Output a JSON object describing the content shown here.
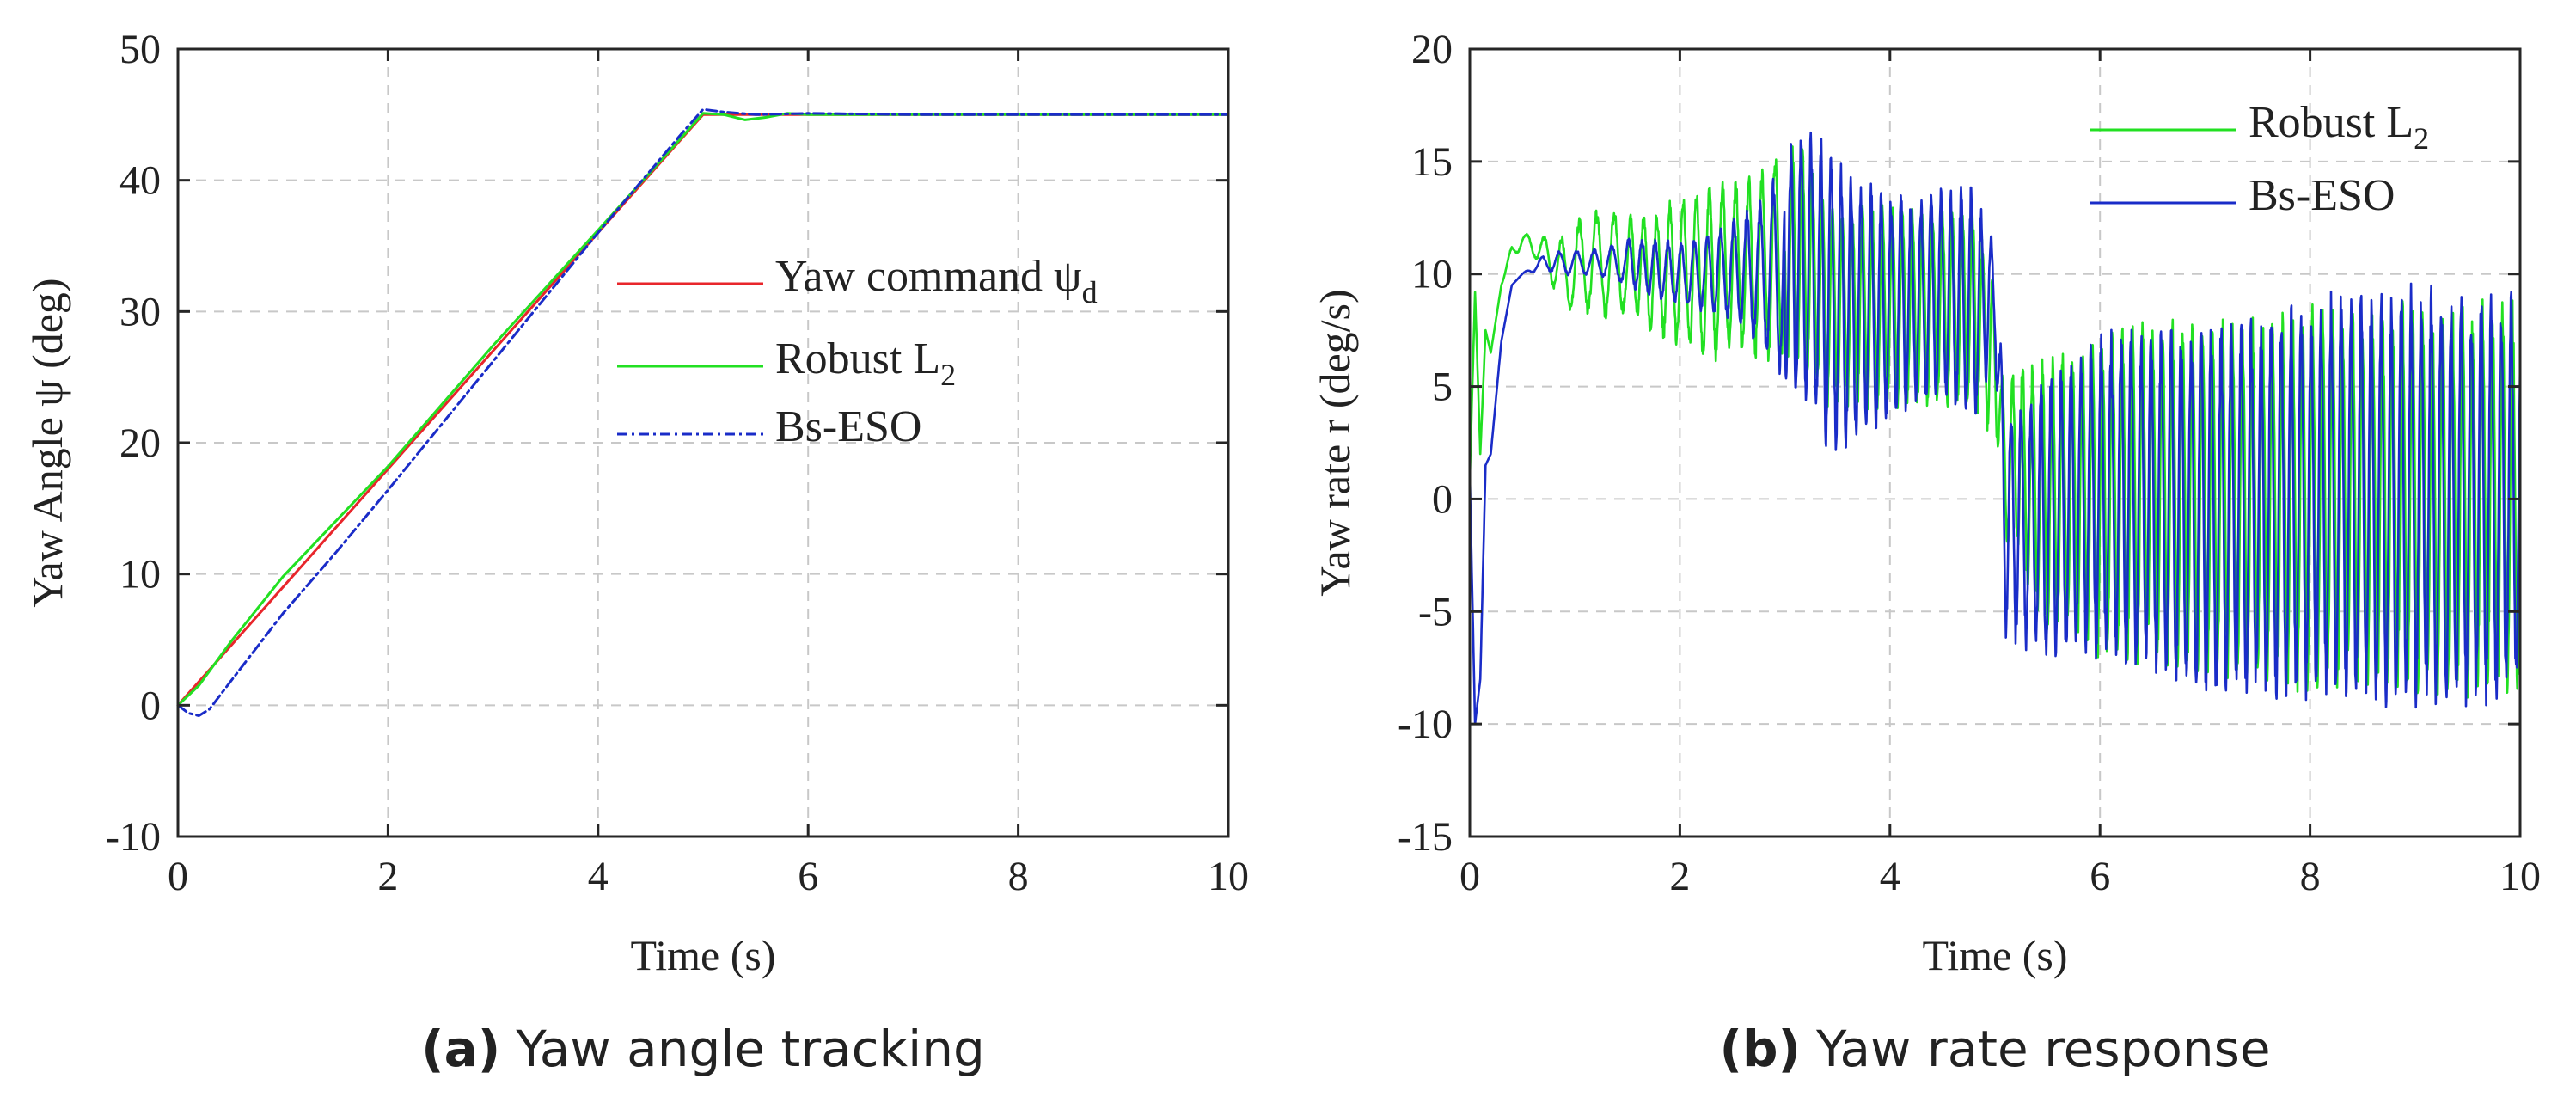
{
  "chart_data": [
    {
      "id": "a",
      "type": "line",
      "caption_letter": "(a)",
      "caption_text": "Yaw angle tracking",
      "xlabel": "Time (s)",
      "ylabel": "Yaw Angle ψ (deg)",
      "xlim": [
        0,
        10
      ],
      "ylim": [
        -10,
        50
      ],
      "xticks": [
        0,
        2,
        4,
        6,
        8,
        10
      ],
      "yticks": [
        -10,
        0,
        10,
        20,
        30,
        40,
        50
      ],
      "grid": true,
      "legend_position": "center-right",
      "series": [
        {
          "name": "Yaw command ψd",
          "label_main": "Yaw command ψ",
          "label_sub": "d",
          "color": "#e8262b",
          "style": "solid",
          "x": [
            0,
            5,
            10
          ],
          "y": [
            0,
            45,
            45
          ]
        },
        {
          "name": "Robust L2",
          "label_main": "Robust  L",
          "label_sub": "2",
          "color": "#22e022",
          "style": "solid",
          "x": [
            0,
            0.2,
            0.5,
            1,
            2,
            3,
            4,
            4.8,
            5,
            5.2,
            5.4,
            5.6,
            5.8,
            6,
            7,
            8,
            9,
            10
          ],
          "y": [
            0,
            1.5,
            4.8,
            9.8,
            18.2,
            27.4,
            36.2,
            43.3,
            45.1,
            45.0,
            44.6,
            44.8,
            45.1,
            45.0,
            45.0,
            45.0,
            45.0,
            45.0
          ]
        },
        {
          "name": "Bs-ESO",
          "label_main": "Bs-ESO",
          "label_sub": "",
          "color": "#1a2cc8",
          "style": "dash-dot",
          "x": [
            0,
            0.1,
            0.2,
            0.3,
            0.5,
            1,
            1.5,
            2,
            3,
            4,
            4.8,
            5,
            5.2,
            5.5,
            6,
            7,
            8,
            9,
            10
          ],
          "y": [
            0,
            -0.6,
            -0.8,
            -0.3,
            1.8,
            7.0,
            11.6,
            16.4,
            26.2,
            36.0,
            43.6,
            45.4,
            45.2,
            45.0,
            45.1,
            45.0,
            45.0,
            45.0,
            45.0
          ]
        }
      ]
    },
    {
      "id": "b",
      "type": "line",
      "caption_letter": "(b)",
      "caption_text": "Yaw rate response",
      "xlabel": "Time (s)",
      "ylabel": "Yaw rate r (deg/s)",
      "xlim": [
        0,
        10
      ],
      "ylim": [
        -15,
        20
      ],
      "xticks": [
        0,
        2,
        4,
        6,
        8,
        10
      ],
      "yticks": [
        -15,
        -10,
        -5,
        0,
        5,
        10,
        15,
        20
      ],
      "grid": true,
      "legend_position": "top-right",
      "series": [
        {
          "name": "Robust L2",
          "label_main": "Robust  L",
          "label_sub": "2",
          "color": "#22e022",
          "style": "solid",
          "x": [
            0,
            0.05,
            0.1,
            0.15,
            0.2,
            0.3,
            0.4,
            0.5,
            0.7,
            0.9,
            1.1,
            1.3,
            1.5,
            1.8,
            2.0,
            2.2,
            2.5,
            2.8,
            3.0,
            3.2,
            3.4,
            3.6,
            3.8,
            4.0,
            4.3,
            4.6,
            4.8,
            5.0,
            5.05,
            5.1,
            5.2,
            5.3,
            5.5,
            5.8,
            6.0,
            6.5,
            7.0,
            7.5,
            8.0,
            8.5,
            9.0,
            9.5,
            10.0
          ],
          "y": [
            1,
            9.2,
            2,
            7.5,
            6.5,
            9.5,
            11,
            11.5,
            11,
            10,
            10.5,
            10.5,
            10.5,
            10,
            10.2,
            10,
            10.3,
            10.5,
            11,
            10.5,
            8.5,
            8.5,
            8.5,
            8.5,
            8.5,
            8.5,
            8.5,
            6,
            4,
            1,
            2,
            1,
            0,
            0,
            0,
            0.5,
            0,
            0,
            0,
            0,
            0,
            0,
            0
          ],
          "osc_amp": [
            0,
            0,
            0,
            0,
            0,
            0,
            0.3,
            0.3,
            0.6,
            1.5,
            2.0,
            2.2,
            2.0,
            2.5,
            3.0,
            3.5,
            3.5,
            3.8,
            4.5,
            4.5,
            4.0,
            4.0,
            4.0,
            4.0,
            4.0,
            4.0,
            4.2,
            3.0,
            2.0,
            3.0,
            3.8,
            4.5,
            5.5,
            6.0,
            6.5,
            6.8,
            7.0,
            7.2,
            7.6,
            7.6,
            7.8,
            7.8,
            7.8
          ]
        },
        {
          "name": "Bs-ESO",
          "label_main": "Bs-ESO",
          "label_sub": "",
          "color": "#1a2cc8",
          "style": "solid",
          "x": [
            0,
            0.05,
            0.1,
            0.15,
            0.2,
            0.3,
            0.4,
            0.5,
            0.7,
            0.9,
            1.1,
            1.3,
            1.5,
            1.8,
            2.0,
            2.2,
            2.5,
            2.8,
            3.0,
            3.2,
            3.4,
            3.6,
            3.8,
            4.0,
            4.3,
            4.6,
            4.8,
            5.0,
            5.05,
            5.1,
            5.2,
            5.3,
            5.5,
            5.8,
            6.0,
            6.5,
            7.0,
            7.5,
            8.0,
            8.5,
            9.0,
            9.5,
            10.0
          ],
          "y": [
            1,
            -10,
            -8,
            1.5,
            2,
            7,
            9.5,
            10,
            10.5,
            10.5,
            10.5,
            10.5,
            10.5,
            10.2,
            10.0,
            10.0,
            10.2,
            10.0,
            10.2,
            10.5,
            9.0,
            8.5,
            8.5,
            8.5,
            8.8,
            9.0,
            8.5,
            9.0,
            4,
            -1,
            -1,
            -1,
            -1,
            0,
            0,
            0,
            -0.5,
            -0.5,
            0,
            0,
            0,
            0,
            0
          ],
          "osc_amp": [
            0,
            0,
            0,
            0,
            0,
            0,
            0,
            0,
            0.3,
            0.5,
            0.5,
            0.6,
            1.0,
            1.2,
            1.2,
            1.5,
            2.0,
            3.0,
            4.5,
            5.5,
            6.0,
            5.5,
            5.0,
            4.5,
            4.2,
            4.5,
            4.8,
            2.0,
            3.0,
            4.5,
            5.0,
            5.0,
            5.8,
            6.0,
            6.5,
            7.0,
            7.3,
            7.6,
            8.0,
            8.1,
            8.4,
            8.3,
            8.0
          ]
        }
      ]
    }
  ]
}
